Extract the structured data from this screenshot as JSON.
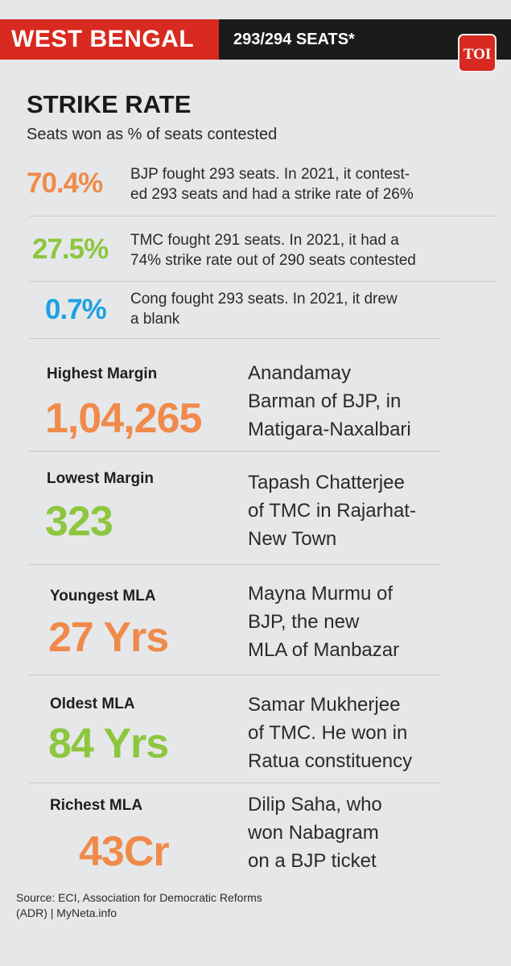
{
  "header": {
    "state": "WEST BENGAL",
    "seats": "293/294 SEATS*",
    "logo_text": "TOI"
  },
  "title": "STRIKE RATE",
  "subtitle": "Seats won as % of seats contested",
  "strike_rates": [
    {
      "pct": "70.4%",
      "line1": "BJP fought 293 seats. In 2021, it contest-",
      "line2": "ed 293 seats and had a strike rate of 26%",
      "color": "#f08a4b"
    },
    {
      "pct": "27.5%",
      "line1": "TMC fought 291 seats. In 2021, it had a",
      "line2": "74% strike rate out of 290 seats contested",
      "color": "#8dc63f"
    },
    {
      "pct": "0.7%",
      "line1": "Cong fought 293 seats. In 2021, it drew",
      "line2": "a blank",
      "color": "#1ca1e2"
    }
  ],
  "stats": [
    {
      "label": "Highest Margin",
      "value": "1,04,265",
      "lines": [
        "Anandamay",
        "Barman  of BJP, in",
        "Matigara-Naxalbari"
      ],
      "color": "#f08a4b"
    },
    {
      "label": "Lowest Margin",
      "value": "323",
      "lines": [
        "Tapash Chatterjee",
        "of TMC in Rajarhat-",
        "New Town"
      ],
      "color": "#8dc63f"
    },
    {
      "label": "Youngest MLA",
      "value": "27 Yrs",
      "lines": [
        "Mayna Murmu  of",
        "BJP, the new",
        "MLA of Manbazar"
      ],
      "color": "#f08a4b"
    },
    {
      "label": "Oldest MLA",
      "value": "84 Yrs",
      "lines": [
        "Samar Mukherjee",
        "of TMC. He won in",
        "Ratua constituency"
      ],
      "color": "#8dc63f"
    },
    {
      "label": "Richest MLA",
      "value": "43Cr",
      "lines": [
        "Dilip Saha, who",
        "won Nabagram",
        "on a BJP ticket"
      ],
      "color": "#f08a4b"
    }
  ],
  "source": {
    "line1": "Source: ECI, Association for Democratic Reforms",
    "line2": "(ADR) | MyNeta.info"
  }
}
